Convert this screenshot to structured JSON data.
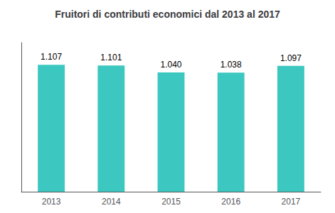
{
  "chart_data": {
    "type": "bar",
    "title": "Fruitori di contributi economici dal 2013 al 2017",
    "categories": [
      "2013",
      "2014",
      "2015",
      "2016",
      "2017"
    ],
    "values": [
      1107,
      1101,
      1040,
      1038,
      1097
    ],
    "value_labels": [
      "1.107",
      "1.101",
      "1.040",
      "1.038",
      "1.097"
    ],
    "data_labels": true,
    "color": "#3CC8C0",
    "ylim": [
      0,
      1300
    ],
    "grid": false,
    "tick_labels": "x"
  }
}
